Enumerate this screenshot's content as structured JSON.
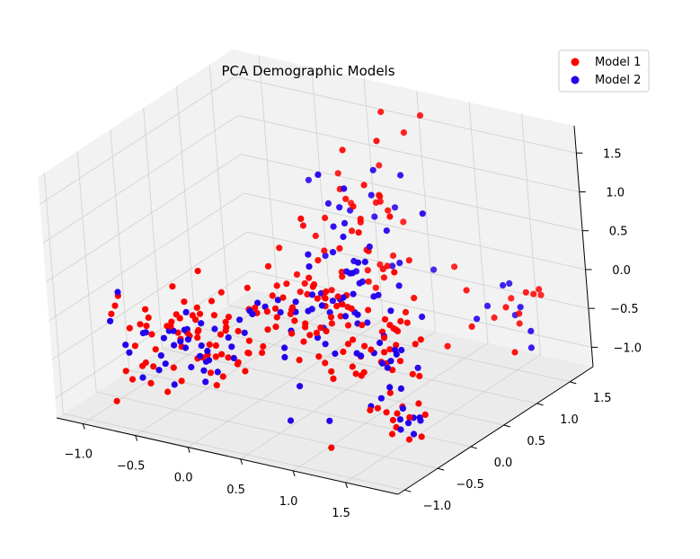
{
  "chart_data": {
    "type": "scatter3d",
    "title": "PCA Demographic Models",
    "xlabel": "",
    "ylabel": "",
    "zlabel": "",
    "xlim": [
      -1.25,
      2.0
    ],
    "ylim": [
      -1.1,
      1.85
    ],
    "zlim": [
      -1.25,
      1.85
    ],
    "xticks": [
      "−1.0",
      "−0.5",
      "0.0",
      "0.5",
      "1.0",
      "1.5"
    ],
    "xtick_values": [
      -1.0,
      -0.5,
      0.0,
      0.5,
      1.0,
      1.5
    ],
    "yticks": [
      "−1.0",
      "−0.5",
      "0.0",
      "0.5",
      "1.0",
      "1.5"
    ],
    "ytick_values": [
      -1.0,
      -0.5,
      0.0,
      0.5,
      1.0,
      1.5
    ],
    "zticks": [
      "−1.0",
      "−0.5",
      "0.0",
      "0.5",
      "1.0",
      "1.5"
    ],
    "ztick_values": [
      -1.0,
      -0.5,
      0.0,
      0.5,
      1.0,
      1.5
    ],
    "grid": true,
    "legend_position": "top-right",
    "series": [
      {
        "name": "Model 1",
        "color": "#ff0000",
        "clusters": [
          {
            "center": [
              -0.6,
              -0.1,
              -0.6
            ],
            "spread": [
              0.35,
              0.35,
              0.25
            ],
            "count": 70
          },
          {
            "center": [
              0.2,
              0.5,
              -0.2
            ],
            "spread": [
              0.3,
              0.3,
              0.25
            ],
            "count": 50
          },
          {
            "center": [
              0.5,
              1.0,
              0.6
            ],
            "spread": [
              0.25,
              0.25,
              0.5
            ],
            "count": 40
          },
          {
            "center": [
              1.0,
              0.3,
              -0.4
            ],
            "spread": [
              0.2,
              0.3,
              0.35
            ],
            "count": 45
          },
          {
            "center": [
              1.7,
              -0.6,
              -0.7
            ],
            "spread": [
              0.12,
              0.12,
              0.15
            ],
            "count": 14
          },
          {
            "center": [
              1.6,
              1.3,
              -0.2
            ],
            "spread": [
              0.2,
              0.2,
              0.2
            ],
            "count": 12
          }
        ]
      },
      {
        "name": "Model 2",
        "color": "#2200ee",
        "clusters": [
          {
            "center": [
              -0.6,
              -0.1,
              -0.65
            ],
            "spread": [
              0.35,
              0.35,
              0.25
            ],
            "count": 40
          },
          {
            "center": [
              0.2,
              0.5,
              -0.25
            ],
            "spread": [
              0.3,
              0.3,
              0.25
            ],
            "count": 30
          },
          {
            "center": [
              0.5,
              1.0,
              0.6
            ],
            "spread": [
              0.25,
              0.25,
              0.5
            ],
            "count": 30
          },
          {
            "center": [
              1.0,
              0.3,
              -0.45
            ],
            "spread": [
              0.2,
              0.3,
              0.35
            ],
            "count": 25
          },
          {
            "center": [
              1.7,
              -0.6,
              -0.75
            ],
            "spread": [
              0.12,
              0.12,
              0.15
            ],
            "count": 8
          },
          {
            "center": [
              1.6,
              1.3,
              -0.25
            ],
            "spread": [
              0.2,
              0.2,
              0.2
            ],
            "count": 8
          }
        ]
      }
    ]
  }
}
